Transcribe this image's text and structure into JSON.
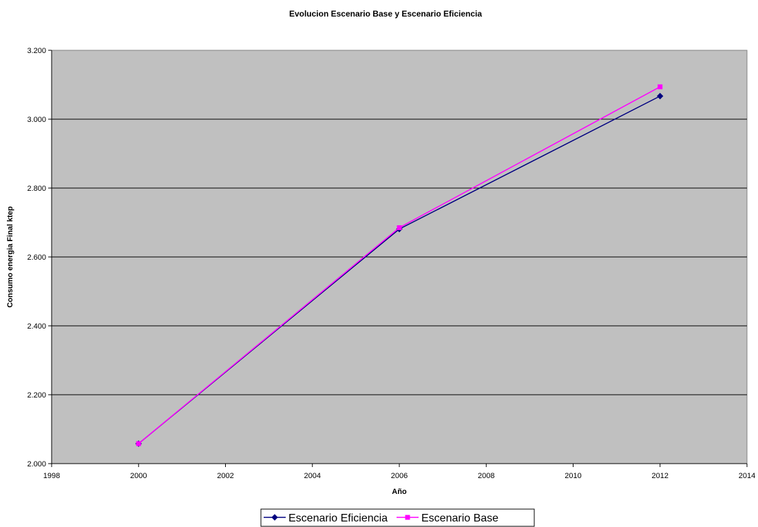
{
  "chart_data": {
    "type": "line",
    "title": "Evolucion Escenario Base y Escenario Eficiencia",
    "xlabel": "Año",
    "ylabel": "Consumo energia Final ktep",
    "xlim": [
      1998,
      2014
    ],
    "ylim": [
      2000,
      3200
    ],
    "x_ticks": [
      1998,
      2000,
      2002,
      2004,
      2006,
      2008,
      2010,
      2012,
      2014
    ],
    "y_ticks": [
      2000,
      2200,
      2400,
      2600,
      2800,
      3000,
      3200
    ],
    "x_tick_labels": [
      "1998",
      "2000",
      "2002",
      "2004",
      "2006",
      "2008",
      "2010",
      "2012",
      "2014"
    ],
    "y_tick_labels": [
      "2.000",
      "2.200",
      "2.400",
      "2.600",
      "2.800",
      "3.000",
      "3.200"
    ],
    "grid": "horizontal",
    "plot_background": "#c0c0c0",
    "legend_position": "bottom",
    "series": [
      {
        "name": "Escenario Eficiencia",
        "color": "#000080",
        "marker": "diamond",
        "x": [
          2000,
          2006,
          2012
        ],
        "y": [
          2058,
          2681,
          3067
        ]
      },
      {
        "name": "Escenario Base",
        "color": "#ff00ff",
        "marker": "square",
        "x": [
          2000,
          2006,
          2012
        ],
        "y": [
          2058,
          2685,
          3094
        ]
      }
    ]
  }
}
